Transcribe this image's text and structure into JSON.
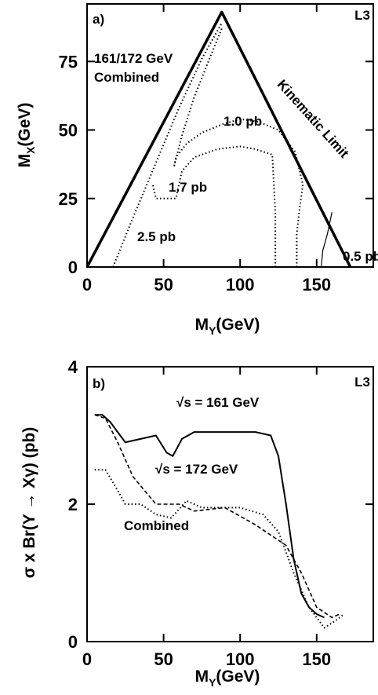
{
  "chart_data": [
    {
      "type": "line",
      "annotations": [
        "a)",
        "L3",
        "161/172 GeV",
        "Combined"
      ],
      "x_label": {
        "main": "M",
        "sub": "Y",
        "unit": "(GeV)"
      },
      "y_label": {
        "main": "M",
        "sub": "X",
        "unit": "(GeV)"
      },
      "xlim": [
        0,
        187
      ],
      "ylim": [
        0,
        96
      ],
      "xticks": [
        0,
        50,
        100,
        150
      ],
      "yticks": [
        0,
        25,
        50,
        75
      ],
      "series": [
        {
          "name": "Kinematic Limit",
          "color": "#000000",
          "style": "solid",
          "width": 3.5,
          "x": [
            0,
            88,
            172
          ],
          "values": [
            0,
            93,
            0
          ]
        },
        {
          "name": "0.5 pb",
          "color": "#000000",
          "style": "solid",
          "width": 1.2,
          "x": [
            153,
            154,
            157,
            160
          ],
          "values": [
            0,
            6,
            12,
            20
          ]
        },
        {
          "name": "2.5 pb",
          "color": "#000000",
          "style": "dotted",
          "width": 2,
          "x": [
            17,
            30,
            45,
            60,
            75,
            88
          ],
          "values": [
            0,
            18,
            38,
            58,
            76,
            89
          ]
        },
        {
          "name": "1.7 pb",
          "color": "#000000",
          "style": "dotted",
          "width": 2,
          "x": [
            123,
            123,
            121,
            110,
            100,
            85,
            70,
            62,
            58,
            50,
            45,
            43
          ],
          "values": [
            0,
            20,
            41,
            43,
            44,
            43,
            40,
            35,
            25,
            25,
            25,
            30
          ]
        },
        {
          "name": "1.0 pb",
          "color": "#000000",
          "style": "dotted",
          "width": 2,
          "x": [
            137,
            137,
            139,
            141,
            136,
            125,
            112,
            100,
            88,
            75,
            65,
            58,
            57,
            62,
            70,
            80,
            88
          ],
          "values": [
            0,
            12,
            22,
            30,
            42,
            50,
            53,
            54,
            52,
            49,
            45,
            40,
            37,
            48,
            62,
            76,
            87
          ]
        }
      ]
    },
    {
      "type": "line",
      "annotations": [
        "b)",
        "L3"
      ],
      "x_label": {
        "main": "M",
        "sub": "Y",
        "unit": "(GeV)"
      },
      "y_label": "σ x Br(Y → Xγ) (pb)",
      "xlim": [
        0,
        187
      ],
      "ylim": [
        0,
        4
      ],
      "xticks": [
        0,
        50,
        100,
        150
      ],
      "yticks": [
        0,
        2,
        4
      ],
      "series": [
        {
          "name": "√s = 161 GeV",
          "color": "#000000",
          "style": "solid",
          "width": 2,
          "x": [
            5,
            10,
            15,
            25,
            35,
            45,
            52,
            56,
            62,
            70,
            90,
            110,
            120,
            125,
            130,
            135,
            140,
            145,
            150,
            155
          ],
          "values": [
            3.3,
            3.3,
            3.2,
            2.9,
            2.95,
            3.0,
            2.75,
            2.7,
            2.95,
            3.05,
            3.05,
            3.05,
            3.0,
            2.7,
            2.0,
            1.2,
            0.7,
            0.5,
            0.4,
            0.35
          ]
        },
        {
          "name": "√s = 172 GeV",
          "color": "#000000",
          "style": "dashed",
          "width": 1.6,
          "x": [
            5,
            12,
            20,
            30,
            45,
            60,
            70,
            90,
            110,
            130,
            140,
            150,
            160,
            165
          ],
          "values": [
            3.3,
            3.25,
            2.9,
            2.4,
            2.0,
            2.0,
            1.9,
            1.95,
            1.7,
            1.4,
            1.0,
            0.5,
            0.35,
            0.4
          ]
        },
        {
          "name": "Combined",
          "color": "#000000",
          "style": "dotted",
          "width": 2,
          "x": [
            5,
            12,
            20,
            25,
            35,
            45,
            55,
            65,
            75,
            100,
            115,
            125,
            135,
            145,
            155,
            162,
            168
          ],
          "values": [
            2.5,
            2.5,
            2.2,
            2.0,
            2.0,
            1.85,
            1.8,
            2.05,
            1.95,
            1.95,
            1.85,
            1.6,
            1.0,
            0.5,
            0.2,
            0.3,
            0.4
          ]
        }
      ]
    }
  ]
}
